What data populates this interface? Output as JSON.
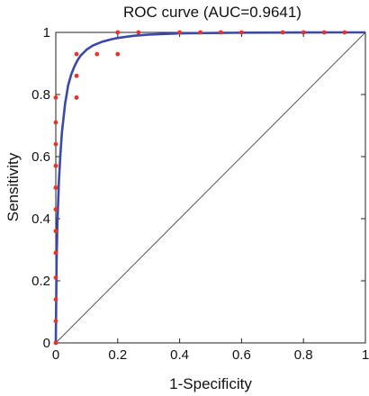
{
  "chart_data": {
    "type": "line",
    "title": "ROC curve (AUC=0.9641)",
    "xlabel": "1-Specificity",
    "ylabel": "Sensitivity",
    "xlim": [
      0,
      1
    ],
    "ylim": [
      0,
      1
    ],
    "xticks": [
      "0",
      "0.2",
      "0.4",
      "0.6",
      "0.8",
      "1"
    ],
    "yticks": [
      "0",
      "0.2",
      "0.4",
      "0.6",
      "0.8",
      "1"
    ],
    "grid": false,
    "legend": "none",
    "colors": {
      "fit": "#3b4aa8",
      "points": "#e8332a",
      "diagonal": "#555555"
    },
    "fitted_curve": {
      "x": [
        0,
        0.0025,
        0.005,
        0.01,
        0.015,
        0.02,
        0.03,
        0.04,
        0.05,
        0.06,
        0.07,
        0.08,
        0.1,
        0.12,
        0.15,
        0.18,
        0.2,
        0.25,
        0.3,
        0.4,
        0.5,
        0.6,
        0.7,
        0.8,
        0.9,
        1.0
      ],
      "y": [
        0,
        0.26,
        0.38,
        0.52,
        0.61,
        0.68,
        0.77,
        0.83,
        0.865,
        0.89,
        0.91,
        0.925,
        0.945,
        0.958,
        0.97,
        0.978,
        0.982,
        0.989,
        0.993,
        0.997,
        0.998,
        0.999,
        0.9995,
        0.9998,
        1.0,
        1.0
      ]
    },
    "empirical_points": {
      "x": [
        0,
        0,
        0,
        0,
        0,
        0,
        0,
        0,
        0,
        0,
        0,
        0,
        0,
        0,
        0,
        0,
        0,
        0.067,
        0.067,
        0.067,
        0.133,
        0.2,
        0.2,
        0.267,
        0.4,
        0.467,
        0.533,
        0.6,
        0.733,
        0.8,
        0.867,
        0.933
      ],
      "y": [
        0,
        0.07,
        0.14,
        0.21,
        0.29,
        0.36,
        0.43,
        0.5,
        0.57,
        0.64,
        0.71,
        0.79,
        0.57,
        0.5,
        0.43,
        0.36,
        0.29,
        0.79,
        0.86,
        0.93,
        0.93,
        0.93,
        1.0,
        1.0,
        1.0,
        1.0,
        1.0,
        1.0,
        1.0,
        1.0,
        1.0,
        1.0
      ]
    },
    "diagonal": {
      "x": [
        0,
        1
      ],
      "y": [
        0,
        1
      ]
    }
  }
}
